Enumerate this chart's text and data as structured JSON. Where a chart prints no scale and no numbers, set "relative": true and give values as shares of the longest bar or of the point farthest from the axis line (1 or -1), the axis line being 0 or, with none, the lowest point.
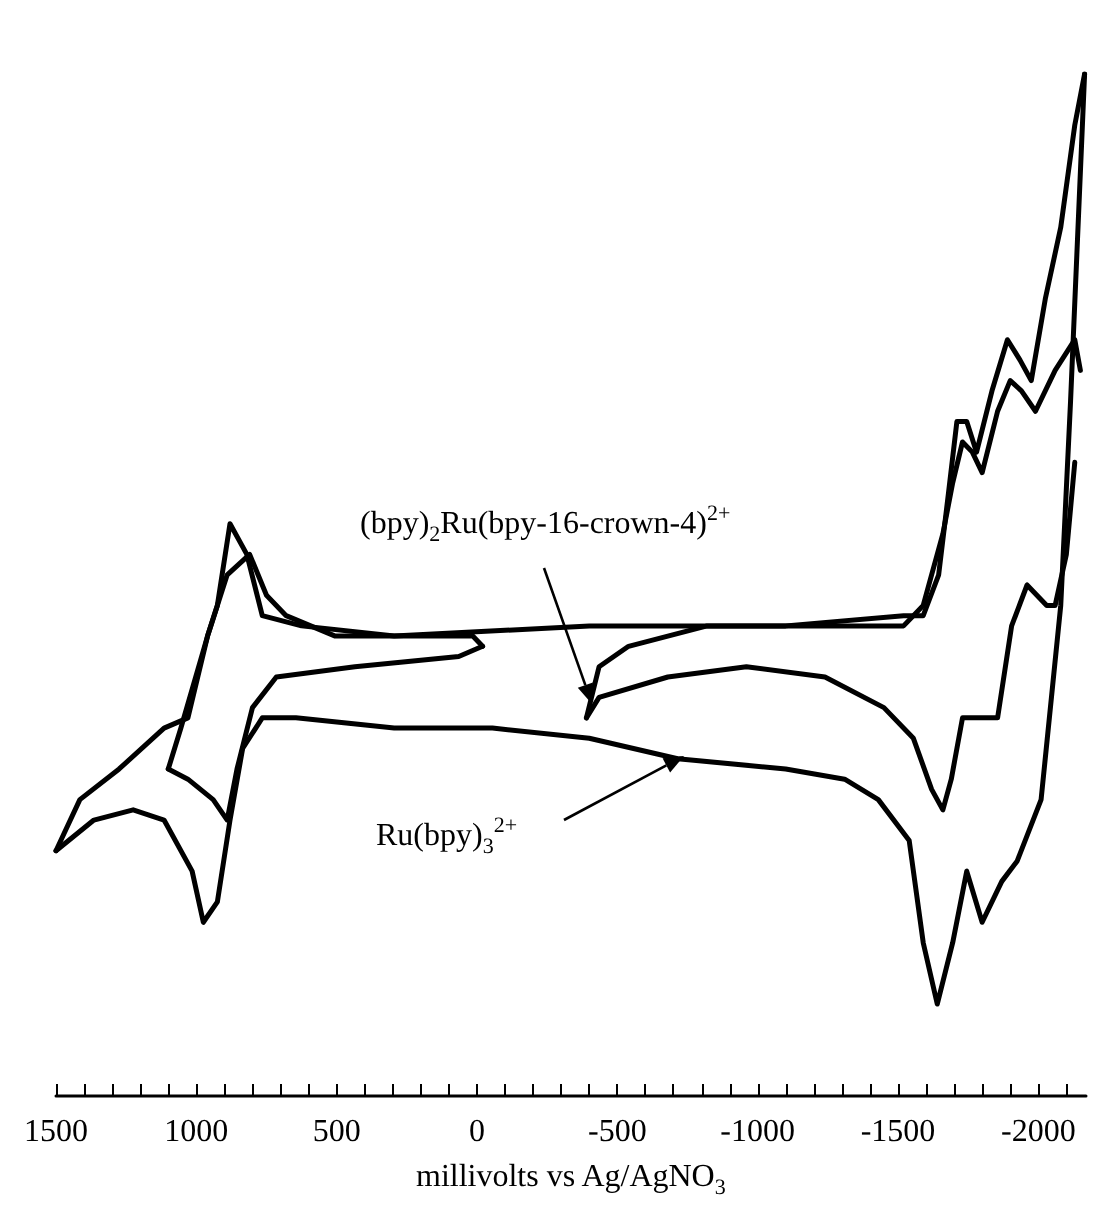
{
  "chart_data": {
    "type": "line",
    "relative": true,
    "xlabel": "millivolts vs Ag/AgNO$_{3}$",
    "xlim": [
      1500,
      -2170
    ],
    "xticks": [
      1500,
      {
        "value": 1400,
        "label": null
      },
      {
        "value": 1300,
        "label": null
      },
      {
        "value": 1200,
        "label": null
      },
      {
        "value": 1100,
        "label": null
      },
      1000,
      {
        "value": 900,
        "label": null
      },
      {
        "value": 800,
        "label": null
      },
      {
        "value": 700,
        "label": null
      },
      {
        "value": 600,
        "label": null
      },
      500,
      {
        "value": 400,
        "label": null
      },
      {
        "value": 300,
        "label": null
      },
      {
        "value": 200,
        "label": null
      },
      {
        "value": 100,
        "label": null
      },
      0,
      {
        "value": -100,
        "label": null
      },
      {
        "value": -200,
        "label": null
      },
      {
        "value": -300,
        "label": null
      },
      {
        "value": -400,
        "label": null
      },
      -500,
      {
        "value": -600,
        "label": null
      },
      {
        "value": -700,
        "label": null
      },
      {
        "value": -800,
        "label": null
      },
      {
        "value": -900,
        "label": null
      },
      -1000,
      {
        "value": -1100,
        "label": null
      },
      {
        "value": -1200,
        "label": null
      },
      {
        "value": -1300,
        "label": null
      },
      {
        "value": -1400,
        "label": null
      },
      -1500,
      {
        "value": -1600,
        "label": null
      },
      {
        "value": -1700,
        "label": null
      },
      {
        "value": -1800,
        "label": null
      },
      {
        "value": -1900,
        "label": null
      },
      -2000,
      {
        "value": -2100,
        "label": null
      }
    ],
    "tick_labels": "x",
    "marker": "none",
    "line_style": "solid",
    "series": [
      {
        "color": "#000000",
        "x": [
          -2165,
          -2115,
          -2080,
          -2010,
          -1925,
          -1870,
          -1800,
          -1745,
          -1695,
          -1640,
          -1590,
          -1540,
          -1430,
          -1310,
          -1100,
          -715,
          -400,
          -55,
          295,
          645,
          765,
          835,
          880,
          925,
          975,
          1015,
          1115,
          1225,
          1365,
          1500
        ],
        "values": [
          1.0,
          0.68,
          0.48,
          0.29,
          0.23,
          0.21,
          0.17,
          0.22,
          0.15,
          0.09,
          0.15,
          0.25,
          0.29,
          0.31,
          0.32,
          0.33,
          0.35,
          0.36,
          0.36,
          0.37,
          0.37,
          0.34,
          0.27,
          0.19,
          0.17,
          0.22,
          0.27,
          0.28,
          0.27,
          0.24
        ]
      },
      {
        "color": "#000000",
        "x": [
          1500,
          1415,
          1275,
          1115,
          1030,
          960,
          925,
          880,
          820,
          765,
          625,
          295,
          -400,
          -1100,
          -1520,
          -1590,
          -1645,
          -1680,
          -1710,
          -1745,
          -1780,
          -1835,
          -1890,
          -1935,
          -1975,
          -2025,
          -2080,
          -2130,
          -2165
        ],
        "values": [
          0.24,
          0.29,
          0.32,
          0.36,
          0.37,
          0.45,
          0.48,
          0.56,
          0.53,
          0.47,
          0.46,
          0.45,
          0.46,
          0.46,
          0.47,
          0.47,
          0.51,
          0.59,
          0.66,
          0.66,
          0.63,
          0.69,
          0.74,
          0.72,
          0.7,
          0.78,
          0.85,
          0.95,
          1.0
        ]
      },
      {
        "color": "#000000",
        "x": [
          -20,
          65,
          435,
          715,
          800,
          855,
          890,
          940,
          1030,
          1100
        ],
        "values": [
          0.44,
          0.43,
          0.42,
          0.41,
          0.38,
          0.32,
          0.27,
          0.29,
          0.31,
          0.32
        ]
      },
      {
        "color": "#000000",
        "x": [
          1100,
          1055,
          960,
          890,
          810,
          750,
          680,
          505,
          15,
          -20
        ],
        "values": [
          0.32,
          0.36,
          0.45,
          0.51,
          0.53,
          0.49,
          0.47,
          0.45,
          0.45,
          0.44
        ]
      },
      {
        "color": "#000000",
        "x": [
          -390,
          -435,
          -540,
          -820,
          -1240,
          -1520,
          -1590,
          -1660,
          -1695,
          -1730,
          -1765,
          -1800,
          -1855,
          -1900,
          -1940,
          -1990,
          -2060,
          -2130,
          -2150
        ],
        "values": [
          0.37,
          0.42,
          0.44,
          0.46,
          0.46,
          0.46,
          0.48,
          0.55,
          0.6,
          0.64,
          0.63,
          0.61,
          0.67,
          0.7,
          0.69,
          0.67,
          0.71,
          0.74,
          0.71
        ]
      },
      {
        "color": "#000000",
        "x": [
          -2130,
          -2100,
          -2060,
          -2030,
          -1960,
          -1905,
          -1855,
          -1835,
          -1780,
          -1730,
          -1690,
          -1660,
          -1620,
          -1555,
          -1450,
          -1240,
          -960,
          -680,
          -435,
          -390
        ],
        "values": [
          0.62,
          0.53,
          0.48,
          0.48,
          0.5,
          0.46,
          0.37,
          0.37,
          0.37,
          0.37,
          0.31,
          0.28,
          0.3,
          0.35,
          0.38,
          0.41,
          0.42,
          0.41,
          0.39,
          0.37
        ]
      }
    ],
    "annotations": [
      "(bpy)$_{2}$Ru(bpy-16-crown-4)$^{2+}$",
      "Ru(bpy)$_{3}$$^{2+}$"
    ]
  }
}
